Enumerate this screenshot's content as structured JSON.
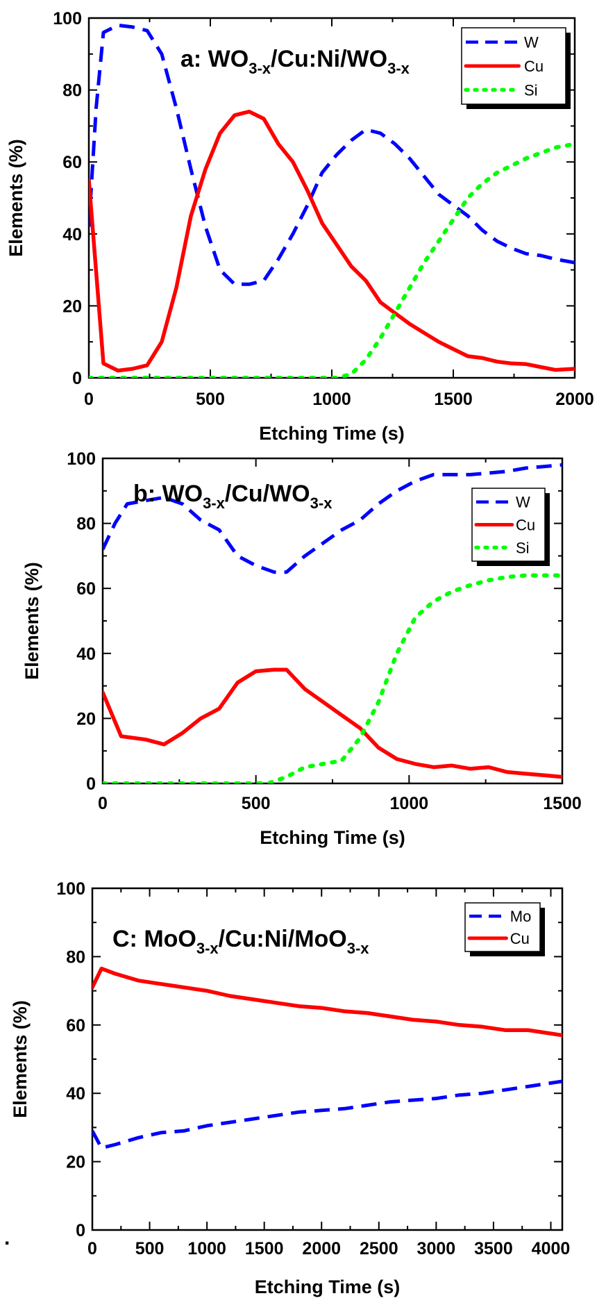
{
  "stray_mark": ".",
  "chart_data": [
    {
      "type": "line",
      "title": {
        "base": "a: WO",
        "sub1": "3-x",
        "mid": "/Cu:Ni/WO",
        "sub2": "3-x"
      },
      "xlabel": "Etching Time (s)",
      "ylabel": "Elements (%)",
      "xlim": [
        0,
        2000
      ],
      "ylim": [
        0,
        100
      ],
      "xticks": [
        0,
        500,
        1000,
        1500,
        2000
      ],
      "yticks": [
        0,
        20,
        40,
        60,
        80,
        100
      ],
      "legend_position": "top-right",
      "series": [
        {
          "name": "W",
          "color": "#0000ff",
          "dash": "dash",
          "points": [
            [
              0,
              42
            ],
            [
              30,
              75
            ],
            [
              60,
              96
            ],
            [
              120,
              98
            ],
            [
              180,
              97.5
            ],
            [
              240,
              96.5
            ],
            [
              300,
              90
            ],
            [
              360,
              75
            ],
            [
              420,
              58
            ],
            [
              480,
              42
            ],
            [
              540,
              30
            ],
            [
              600,
              26
            ],
            [
              660,
              26
            ],
            [
              720,
              27
            ],
            [
              780,
              33
            ],
            [
              840,
              40
            ],
            [
              900,
              48
            ],
            [
              960,
              57
            ],
            [
              1020,
              62
            ],
            [
              1080,
              66
            ],
            [
              1140,
              69
            ],
            [
              1200,
              68
            ],
            [
              1260,
              65
            ],
            [
              1320,
              61
            ],
            [
              1380,
              56
            ],
            [
              1440,
              51
            ],
            [
              1500,
              48
            ],
            [
              1560,
              45
            ],
            [
              1620,
              41
            ],
            [
              1680,
              38
            ],
            [
              1740,
              36
            ],
            [
              1800,
              34.5
            ],
            [
              1860,
              34
            ],
            [
              1920,
              33
            ],
            [
              2000,
              32
            ]
          ]
        },
        {
          "name": "Cu",
          "color": "#ff0000",
          "dash": "solid",
          "points": [
            [
              0,
              55
            ],
            [
              60,
              4
            ],
            [
              120,
              2
            ],
            [
              180,
              2.5
            ],
            [
              240,
              3.5
            ],
            [
              300,
              10
            ],
            [
              360,
              25
            ],
            [
              420,
              45
            ],
            [
              480,
              58
            ],
            [
              540,
              68
            ],
            [
              600,
              73
            ],
            [
              660,
              74
            ],
            [
              720,
              72
            ],
            [
              780,
              65
            ],
            [
              840,
              60
            ],
            [
              900,
              52
            ],
            [
              960,
              43
            ],
            [
              1020,
              37
            ],
            [
              1080,
              31
            ],
            [
              1140,
              27
            ],
            [
              1200,
              21
            ],
            [
              1260,
              18
            ],
            [
              1320,
              15
            ],
            [
              1380,
              12.5
            ],
            [
              1440,
              10
            ],
            [
              1500,
              8
            ],
            [
              1560,
              6
            ],
            [
              1620,
              5.5
            ],
            [
              1680,
              4.5
            ],
            [
              1740,
              4
            ],
            [
              1800,
              3.8
            ],
            [
              1860,
              3
            ],
            [
              1920,
              2.2
            ],
            [
              2000,
              2.5
            ]
          ]
        },
        {
          "name": "Si",
          "color": "#00ff00",
          "dash": "dot",
          "points": [
            [
              0,
              0
            ],
            [
              60,
              0
            ],
            [
              120,
              0
            ],
            [
              240,
              0
            ],
            [
              360,
              0
            ],
            [
              480,
              0
            ],
            [
              600,
              0
            ],
            [
              720,
              0
            ],
            [
              840,
              0
            ],
            [
              960,
              0
            ],
            [
              1020,
              0
            ],
            [
              1080,
              1
            ],
            [
              1140,
              5
            ],
            [
              1200,
              11
            ],
            [
              1260,
              18
            ],
            [
              1320,
              25
            ],
            [
              1380,
              32
            ],
            [
              1440,
              38
            ],
            [
              1500,
              44
            ],
            [
              1560,
              50
            ],
            [
              1620,
              54
            ],
            [
              1680,
              57
            ],
            [
              1740,
              59
            ],
            [
              1800,
              61
            ],
            [
              1860,
              62.5
            ],
            [
              1920,
              64
            ],
            [
              1960,
              64.5
            ],
            [
              2000,
              65
            ]
          ]
        }
      ]
    },
    {
      "type": "line",
      "title": {
        "base": "b: WO",
        "sub1": "3-x",
        "mid": "/Cu/WO",
        "sub2": "3-x"
      },
      "xlabel": "Etching Time (s)",
      "ylabel": "Elements (%)",
      "xlim": [
        0,
        1500
      ],
      "ylim": [
        0,
        100
      ],
      "xticks": [
        0,
        500,
        1000,
        1500
      ],
      "yticks": [
        0,
        20,
        40,
        60,
        80,
        100
      ],
      "legend_position": "top-right",
      "series": [
        {
          "name": "W",
          "color": "#0000ff",
          "dash": "dash",
          "points": [
            [
              0,
              72
            ],
            [
              40,
              80
            ],
            [
              80,
              86
            ],
            [
              140,
              87
            ],
            [
              200,
              88
            ],
            [
              260,
              86
            ],
            [
              320,
              81
            ],
            [
              380,
              78
            ],
            [
              440,
              70
            ],
            [
              500,
              67
            ],
            [
              560,
              65
            ],
            [
              600,
              65
            ],
            [
              660,
              70
            ],
            [
              720,
              74
            ],
            [
              780,
              78
            ],
            [
              840,
              81
            ],
            [
              900,
              86
            ],
            [
              960,
              90
            ],
            [
              1020,
              93
            ],
            [
              1080,
              95
            ],
            [
              1140,
              95
            ],
            [
              1200,
              95
            ],
            [
              1260,
              95.5
            ],
            [
              1320,
              96
            ],
            [
              1380,
              97
            ],
            [
              1440,
              97.5
            ],
            [
              1500,
              98
            ]
          ]
        },
        {
          "name": "Cu",
          "color": "#ff0000",
          "dash": "solid",
          "points": [
            [
              0,
              28
            ],
            [
              60,
              14.5
            ],
            [
              140,
              13.5
            ],
            [
              200,
              12
            ],
            [
              260,
              15.5
            ],
            [
              320,
              20
            ],
            [
              380,
              23
            ],
            [
              440,
              31
            ],
            [
              500,
              34.5
            ],
            [
              560,
              35
            ],
            [
              600,
              35
            ],
            [
              660,
              29
            ],
            [
              720,
              25
            ],
            [
              780,
              21
            ],
            [
              840,
              17
            ],
            [
              900,
              11
            ],
            [
              960,
              7.5
            ],
            [
              1020,
              6
            ],
            [
              1080,
              5
            ],
            [
              1140,
              5.5
            ],
            [
              1200,
              4.5
            ],
            [
              1260,
              5
            ],
            [
              1320,
              3.5
            ],
            [
              1380,
              3
            ],
            [
              1440,
              2.5
            ],
            [
              1500,
              2
            ]
          ]
        },
        {
          "name": "Si",
          "color": "#00ff00",
          "dash": "dot",
          "points": [
            [
              0,
              0
            ],
            [
              100,
              0
            ],
            [
              200,
              0
            ],
            [
              300,
              0
            ],
            [
              400,
              0
            ],
            [
              480,
              0
            ],
            [
              540,
              0
            ],
            [
              600,
              2
            ],
            [
              660,
              5
            ],
            [
              720,
              6
            ],
            [
              780,
              7
            ],
            [
              840,
              14
            ],
            [
              900,
              25
            ],
            [
              960,
              40
            ],
            [
              1020,
              51
            ],
            [
              1080,
              56
            ],
            [
              1140,
              59
            ],
            [
              1200,
              61
            ],
            [
              1260,
              62.5
            ],
            [
              1320,
              63.5
            ],
            [
              1380,
              64
            ],
            [
              1440,
              64
            ],
            [
              1500,
              64
            ]
          ]
        }
      ]
    },
    {
      "type": "line",
      "title": {
        "base": "C: MoO",
        "sub1": "3-x",
        "mid": "/Cu:Ni/MoO",
        "sub2": "3-x"
      },
      "xlabel": "Etching Time (s)",
      "ylabel": "Elements (%)",
      "xlim": [
        0,
        4100
      ],
      "ylim": [
        0,
        100
      ],
      "xticks": [
        0,
        500,
        1000,
        1500,
        2000,
        2500,
        3000,
        3500,
        4000
      ],
      "yticks": [
        0,
        20,
        40,
        60,
        80,
        100
      ],
      "legend_position": "top-right",
      "series": [
        {
          "name": "Mo",
          "color": "#0000ff",
          "dash": "dash",
          "points": [
            [
              0,
              29
            ],
            [
              80,
              24
            ],
            [
              200,
              25
            ],
            [
              400,
              27
            ],
            [
              600,
              28.5
            ],
            [
              800,
              29
            ],
            [
              1000,
              30.5
            ],
            [
              1200,
              31.5
            ],
            [
              1400,
              32.5
            ],
            [
              1600,
              33.5
            ],
            [
              1800,
              34.5
            ],
            [
              2000,
              35
            ],
            [
              2200,
              35.5
            ],
            [
              2400,
              36.5
            ],
            [
              2600,
              37.5
            ],
            [
              2800,
              38
            ],
            [
              3000,
              38.5
            ],
            [
              3200,
              39.5
            ],
            [
              3400,
              40
            ],
            [
              3600,
              41
            ],
            [
              3800,
              42
            ],
            [
              4000,
              43
            ],
            [
              4100,
              43.5
            ]
          ]
        },
        {
          "name": "Cu",
          "color": "#ff0000",
          "dash": "solid",
          "points": [
            [
              0,
              71
            ],
            [
              80,
              76.5
            ],
            [
              200,
              75
            ],
            [
              400,
              73
            ],
            [
              600,
              72
            ],
            [
              800,
              71
            ],
            [
              1000,
              70
            ],
            [
              1200,
              68.5
            ],
            [
              1400,
              67.5
            ],
            [
              1600,
              66.5
            ],
            [
              1800,
              65.5
            ],
            [
              2000,
              65
            ],
            [
              2200,
              64
            ],
            [
              2400,
              63.5
            ],
            [
              2600,
              62.5
            ],
            [
              2800,
              61.5
            ],
            [
              3000,
              61
            ],
            [
              3200,
              60
            ],
            [
              3400,
              59.5
            ],
            [
              3600,
              58.5
            ],
            [
              3800,
              58.5
            ],
            [
              4000,
              57.5
            ],
            [
              4100,
              57
            ]
          ]
        }
      ]
    }
  ]
}
